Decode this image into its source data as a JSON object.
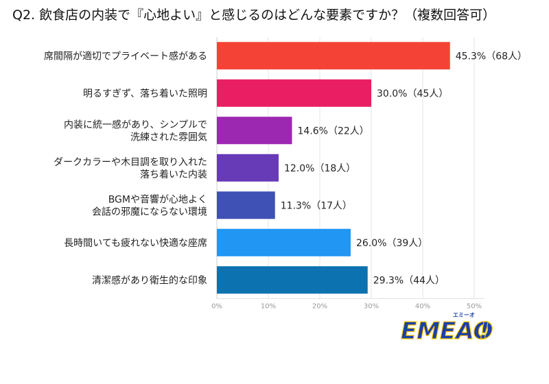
{
  "title": "Q2. 飲食店の内装で『心地よい』と感じるのはどんな要素ですか？（複数回答可）",
  "chart_data": {
    "type": "bar",
    "orientation": "horizontal",
    "categories": [
      [
        "席間隔が適切でプライベート感がある"
      ],
      [
        "明るすぎず、落ち着いた照明"
      ],
      [
        "内装に統一感があり、シンプルで",
        "洗練された雰囲気"
      ],
      [
        "ダークカラーや木目調を取り入れた",
        "落ち着いた内装"
      ],
      [
        "BGMや音響が心地よく",
        "会話の邪魔にならない環境"
      ],
      [
        "長時間いても疲れない快適な座席"
      ],
      [
        "清潔感があり衛生的な印象"
      ]
    ],
    "values": [
      45.3,
      30.0,
      14.6,
      12.0,
      11.3,
      26.0,
      29.3
    ],
    "value_labels": [
      "45.3%（68人）",
      "30.0%（45人）",
      "14.6%（22人）",
      "12.0%（18人）",
      "11.3%（17人）",
      "26.0%（39人）",
      "29.3%（44人）"
    ],
    "colors": [
      "#f44336",
      "#e91e63",
      "#9c27b0",
      "#673ab7",
      "#3f51b5",
      "#2196f3",
      "#0d72b0"
    ],
    "xlim": [
      0,
      50
    ],
    "xticks": [
      0,
      10,
      20,
      30,
      40,
      50
    ],
    "xtick_labels": [
      "0%",
      "10%",
      "20%",
      "30%",
      "40%",
      "50%"
    ],
    "grid": true
  },
  "logo": {
    "text": "EMEAO",
    "tagline": "エミーオ",
    "color": "#1a3fa8",
    "accent": "#f5c400"
  }
}
